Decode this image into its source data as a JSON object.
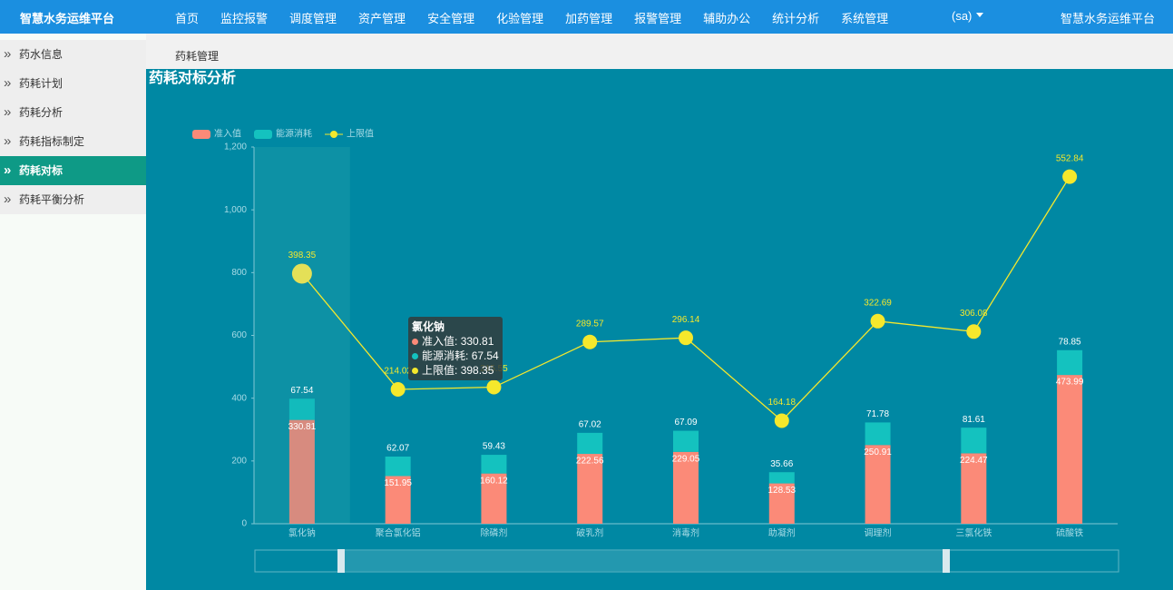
{
  "header": {
    "title": "智慧水务运维平台",
    "menu": [
      "首页",
      "监控报警",
      "调度管理",
      "资产管理",
      "安全管理",
      "化验管理",
      "加药管理",
      "报警管理",
      "辅助办公",
      "统计分析",
      "系统管理"
    ],
    "user": "(sa)",
    "right_title": "智慧水务运维平台"
  },
  "sidebar": {
    "items": [
      "药水信息",
      "药耗计划",
      "药耗分析",
      "药耗指标制定",
      "药耗对标",
      "药耗平衡分析"
    ],
    "active": 4
  },
  "breadcrumb": "药耗管理",
  "chart_data": {
    "type": "bar",
    "title": "药耗对标分析",
    "categories": [
      "氯化钠",
      "聚合氯化铝",
      "除磷剂",
      "破乳剂",
      "消毒剂",
      "助凝剂",
      "调理剂",
      "三氯化铁",
      "硫酸铁"
    ],
    "series": [
      {
        "name": "准入值",
        "type": "bar",
        "color": "#fb8a78",
        "values": [
          330.81,
          151.95,
          160.12,
          222.56,
          229.05,
          128.53,
          250.91,
          224.47,
          473.99
        ]
      },
      {
        "name": "能源消耗",
        "type": "bar",
        "color": "#14c2bf",
        "values": [
          67.54,
          62.07,
          59.43,
          67.02,
          67.09,
          35.66,
          71.78,
          81.61,
          78.85
        ]
      },
      {
        "name": "上限值",
        "type": "line",
        "color": "#f5e82c",
        "values": [
          398.35,
          214.02,
          215.55,
          289.57,
          296.14,
          164.18,
          322.69,
          306.08,
          552.84
        ]
      }
    ],
    "stacked": true,
    "ylim": [
      0,
      1200
    ],
    "yticks": [
      0,
      200,
      400,
      600,
      800,
      {
        "value": 1000,
        "label": "1,000"
      },
      {
        "value": 1200,
        "label": "1,200"
      }
    ],
    "tooltip": {
      "category_index": 0
    }
  }
}
